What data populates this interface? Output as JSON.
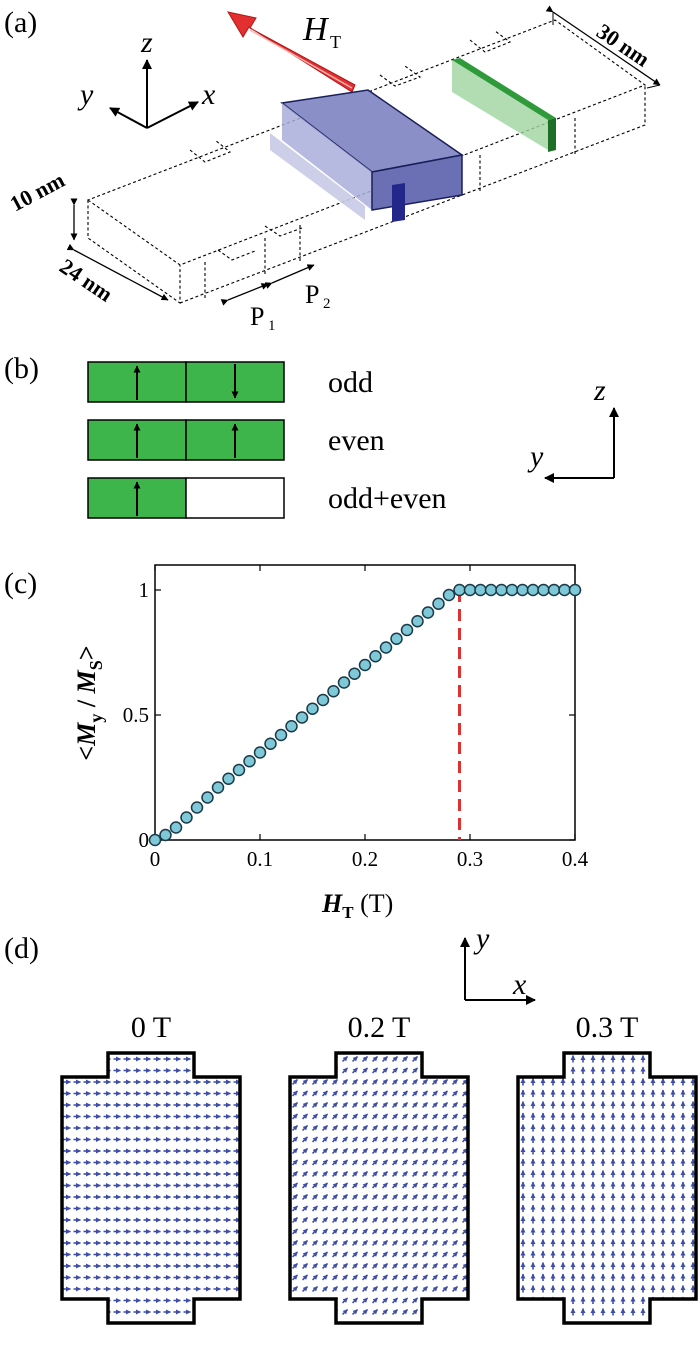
{
  "panels": {
    "a": {
      "label": "(a)",
      "axes": {
        "z": "z",
        "y": "y",
        "x": "x"
      },
      "field_symbol": "H",
      "field_subscript": "T",
      "dims": {
        "length": "30 nm",
        "thickness": "10 nm",
        "width": "24 nm"
      },
      "p1": "P",
      "p1_sub": "1",
      "p2": "P",
      "p2_sub": "2",
      "colors": {
        "magnet_blue": "#8a8fc8",
        "magnet_green": "#2e9a3a",
        "field_arrow": "#e23030"
      }
    },
    "b": {
      "label": "(b)",
      "modes": [
        {
          "name": "odd",
          "left_arrow": "up",
          "right_arrow": "down",
          "right_filled": true
        },
        {
          "name": "even",
          "left_arrow": "up",
          "right_arrow": "up",
          "right_filled": true
        },
        {
          "name": "odd+even",
          "left_arrow": "up",
          "right_arrow": "none",
          "right_filled": false
        }
      ],
      "axes": {
        "z": "z",
        "y": "y"
      },
      "colors": {
        "fill": "#3db54a"
      }
    },
    "c": {
      "label": "(c)",
      "ylabel_parts": [
        "<",
        "M",
        "y",
        " / ",
        "M",
        "S",
        ">"
      ],
      "xlabel_symbol": "H",
      "xlabel_sub": "T",
      "xlabel_unit": " (T)",
      "colors": {
        "marker": "#7ec8d8",
        "threshold": "#e03030"
      }
    },
    "d": {
      "label": "(d)",
      "axes": {
        "y": "y",
        "x": "x"
      },
      "fields": [
        {
          "label": "0 T",
          "angle_deg": 0
        },
        {
          "label": "0.2 T",
          "angle_deg": 45
        },
        {
          "label": "0.3 T",
          "angle_deg": 90
        }
      ],
      "colors": {
        "arrow": "#3f4fa8"
      }
    }
  },
  "chart_data": {
    "type": "scatter",
    "xlabel": "H_T (T)",
    "ylabel": "<M_y / M_S>",
    "xlim": [
      0,
      0.4
    ],
    "ylim": [
      0,
      1.05
    ],
    "xticks": [
      "0",
      "0.1",
      "0.2",
      "0.3",
      "0.4"
    ],
    "yticks": [
      "0",
      "0.5",
      "1"
    ],
    "threshold_x": 0.29,
    "x": [
      0,
      0.01,
      0.02,
      0.03,
      0.04,
      0.05,
      0.06,
      0.07,
      0.08,
      0.09,
      0.1,
      0.11,
      0.12,
      0.13,
      0.14,
      0.15,
      0.16,
      0.17,
      0.18,
      0.19,
      0.2,
      0.21,
      0.22,
      0.23,
      0.24,
      0.25,
      0.26,
      0.27,
      0.28,
      0.29,
      0.3,
      0.31,
      0.32,
      0.33,
      0.34,
      0.35,
      0.36,
      0.37,
      0.38,
      0.39,
      0.4
    ],
    "y": [
      0,
      0.02,
      0.05,
      0.09,
      0.13,
      0.17,
      0.21,
      0.245,
      0.28,
      0.315,
      0.35,
      0.385,
      0.42,
      0.455,
      0.49,
      0.525,
      0.56,
      0.595,
      0.63,
      0.665,
      0.7,
      0.735,
      0.77,
      0.805,
      0.84,
      0.875,
      0.91,
      0.945,
      0.98,
      1.0,
      1.0,
      1.0,
      1.0,
      1.0,
      1.0,
      1.0,
      1.0,
      1.0,
      1.0,
      1.0,
      1.0
    ]
  }
}
